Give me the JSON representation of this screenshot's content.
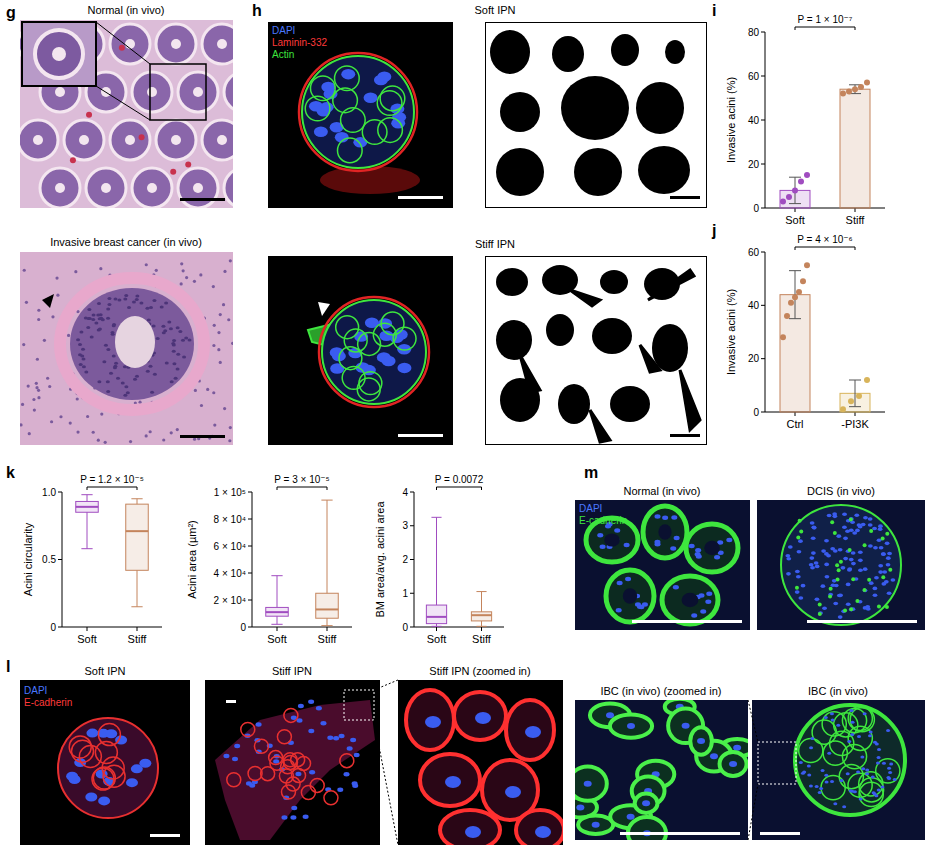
{
  "panels": [
    {
      "label": "g",
      "images": [
        {
          "title": "Normal (in vivo)"
        },
        {
          "title": "Invasive breast cancer (in vivo)"
        }
      ]
    },
    {
      "label": "h",
      "channels": [
        {
          "name": "DAPI",
          "color": "#4a78ff"
        },
        {
          "name": "Laminin-332",
          "color": "#ff3a3a"
        },
        {
          "name": "Actin",
          "color": "#3ee63e"
        }
      ],
      "images": [
        {
          "title": "Soft IPN"
        },
        {
          "title": "Stiff IPN"
        }
      ]
    },
    {
      "label": "l",
      "channels": [
        {
          "name": "DAPI",
          "color": "#4a78ff"
        },
        {
          "name": "E-cadherin",
          "color": "#ff3a3a"
        }
      ],
      "images": [
        {
          "title": "Soft IPN"
        },
        {
          "title": "Stiff IPN"
        },
        {
          "title": "Stiff IPN (zoomed in)"
        }
      ]
    },
    {
      "label": "m",
      "channels": [
        {
          "name": "DAPI",
          "color": "#4a78ff"
        },
        {
          "name": "E-cadherin",
          "color": "#3ee63e"
        }
      ],
      "images": [
        {
          "title": "Normal (in vivo)"
        },
        {
          "title": "DCIS (in vivo)"
        },
        {
          "title": "IBC (in vivo) (zoomed in)"
        },
        {
          "title": "IBC (in vivo)"
        }
      ]
    }
  ],
  "chart_data": [
    {
      "panel": "i",
      "type": "bar",
      "y_label": "Invasive acini (%)",
      "categories": [
        "Soft",
        "Stiff"
      ],
      "values": [
        8,
        54
      ],
      "errors": [
        6,
        2
      ],
      "points": [
        [
          3,
          5,
          8,
          12,
          15
        ],
        [
          52,
          53,
          54,
          55,
          57
        ]
      ],
      "colors": [
        "#a04cc0",
        "#c4845c"
      ],
      "ylim": [
        0,
        80
      ],
      "yticks": [
        0,
        20,
        40,
        60,
        80
      ],
      "annotation": "P = 1 × 10⁻⁷"
    },
    {
      "panel": "j",
      "type": "bar",
      "y_label": "Invasive acini (%)",
      "categories": [
        "Ctrl",
        "-PI3K"
      ],
      "values": [
        44,
        7
      ],
      "errors": [
        9,
        5
      ],
      "points": [
        [
          28,
          36,
          41,
          43,
          45,
          49,
          55
        ],
        [
          1,
          4,
          6,
          12
        ]
      ],
      "colors": [
        "#c4845c",
        "#d8b45a"
      ],
      "ylim": [
        0,
        60
      ],
      "yticks": [
        0,
        20,
        40,
        60
      ],
      "annotation": "P = 4 × 10⁻⁶"
    },
    {
      "panel": "k",
      "type": "box",
      "y_label": "Acini circularity",
      "categories": [
        "Soft",
        "Stiff"
      ],
      "colors": [
        "#a04cc0",
        "#c4845c"
      ],
      "boxes": [
        {
          "min": 0.58,
          "q1": 0.85,
          "median": 0.89,
          "q3": 0.93,
          "max": 0.98
        },
        {
          "min": 0.15,
          "q1": 0.42,
          "median": 0.71,
          "q3": 0.91,
          "max": 0.95
        }
      ],
      "ylim": [
        0,
        1
      ],
      "yticks": [
        0,
        0.5,
        {
          "value": 1,
          "label": "1.0"
        }
      ],
      "annotation": "P = 1.2 × 10⁻⁵"
    },
    {
      "type": "box",
      "y_label": "Acini area (µm²)",
      "categories": [
        "Soft",
        "Stiff"
      ],
      "colors": [
        "#a04cc0",
        "#c4845c"
      ],
      "boxes": [
        {
          "min": 2000,
          "q1": 8000,
          "median": 11000,
          "q3": 14500,
          "max": 38000
        },
        {
          "min": 1000,
          "q1": 6500,
          "median": 13000,
          "q3": 25000,
          "max": 94000
        }
      ],
      "ylim": [
        0,
        100000
      ],
      "yticks": [
        0,
        {
          "value": 20000,
          "label": "2 × 10⁴"
        },
        {
          "value": 40000,
          "label": "4 × 10⁴"
        },
        {
          "value": 60000,
          "label": "6 × 10⁴"
        },
        {
          "value": 80000,
          "label": "8 × 10⁴"
        },
        {
          "value": 100000,
          "label": "1 × 10⁵"
        }
      ],
      "annotation": "P = 3 × 10⁻⁵"
    },
    {
      "type": "box",
      "y_label": "BM area/avg. acini area",
      "categories": [
        "Soft",
        "Stiff"
      ],
      "colors": [
        "#a04cc0",
        "#c4845c"
      ],
      "boxes": [
        {
          "min": 0.02,
          "q1": 0.1,
          "median": 0.3,
          "q3": 0.65,
          "max": 3.25
        },
        {
          "min": 0.02,
          "q1": 0.18,
          "median": 0.35,
          "q3": 0.45,
          "max": 1.05
        }
      ],
      "ylim": [
        0,
        4
      ],
      "yticks": [
        0,
        1,
        2,
        3,
        4
      ],
      "annotation": "P = 0.0072"
    }
  ]
}
